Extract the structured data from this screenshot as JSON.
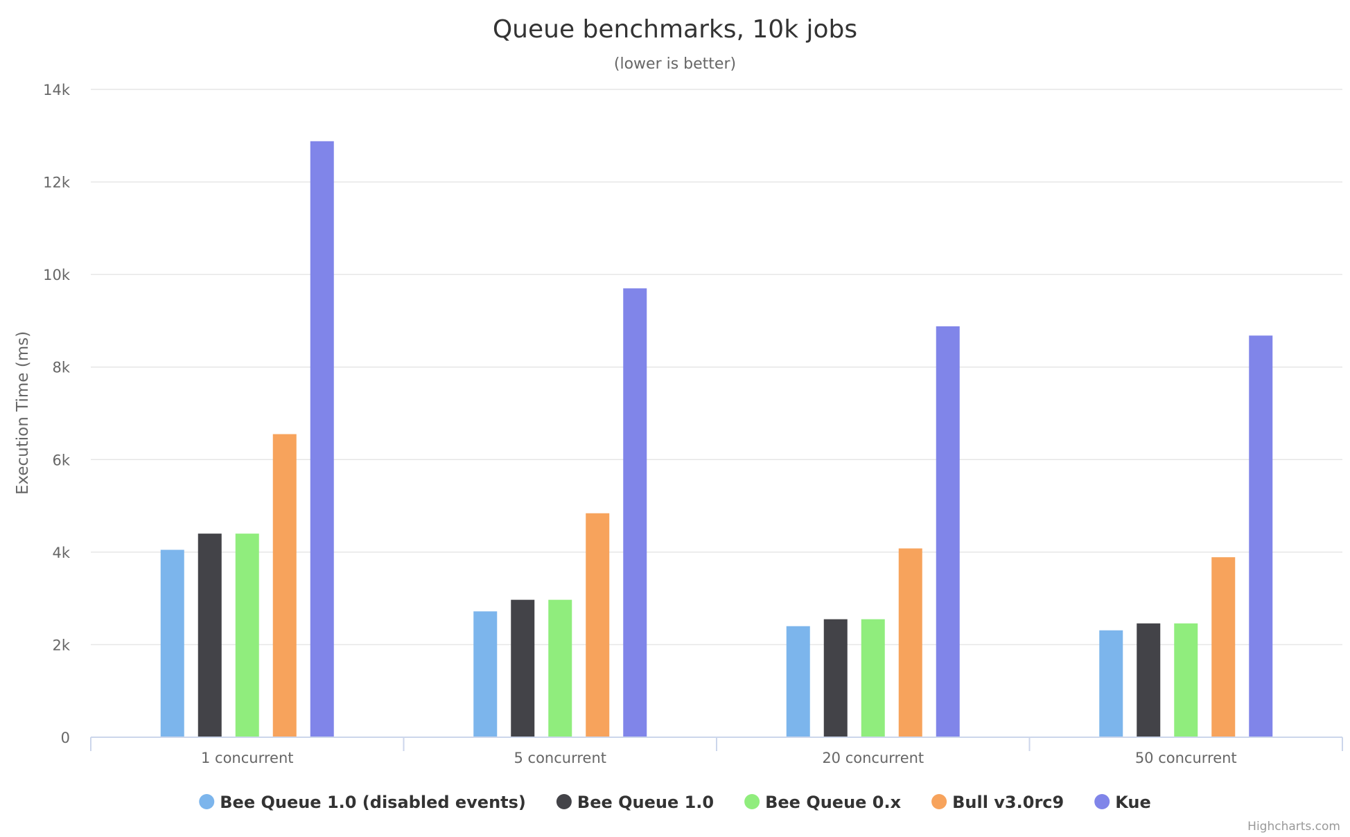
{
  "chart_data": {
    "type": "bar",
    "title": "Queue benchmarks, 10k jobs",
    "subtitle": "(lower is better)",
    "ylabel": "Execution Time (ms)",
    "ylim": [
      0,
      14000
    ],
    "yticks": [
      0,
      2000,
      4000,
      6000,
      8000,
      10000,
      12000,
      14000
    ],
    "ytick_labels": [
      "0",
      "2k",
      "4k",
      "6k",
      "8k",
      "10k",
      "12k",
      "14k"
    ],
    "categories": [
      "1 concurrent",
      "5 concurrent",
      "20 concurrent",
      "50 concurrent"
    ],
    "grid": true,
    "legend_position": "bottom-center",
    "series": [
      {
        "name": "Bee Queue 1.0 (disabled events)",
        "color": "#7cb5ec",
        "values": [
          4050,
          2720,
          2400,
          2310
        ]
      },
      {
        "name": "Bee Queue 1.0",
        "color": "#434348",
        "values": [
          4400,
          2970,
          2550,
          2460
        ]
      },
      {
        "name": "Bee Queue 0.x",
        "color": "#90ed7d",
        "values": [
          4400,
          2970,
          2550,
          2460
        ]
      },
      {
        "name": "Bull v3.0rc9",
        "color": "#f7a35c",
        "values": [
          6550,
          4840,
          4080,
          3890
        ]
      },
      {
        "name": "Kue",
        "color": "#8085e9",
        "values": [
          12880,
          9700,
          8880,
          8680
        ]
      }
    ],
    "credits": "Highcharts.com"
  }
}
